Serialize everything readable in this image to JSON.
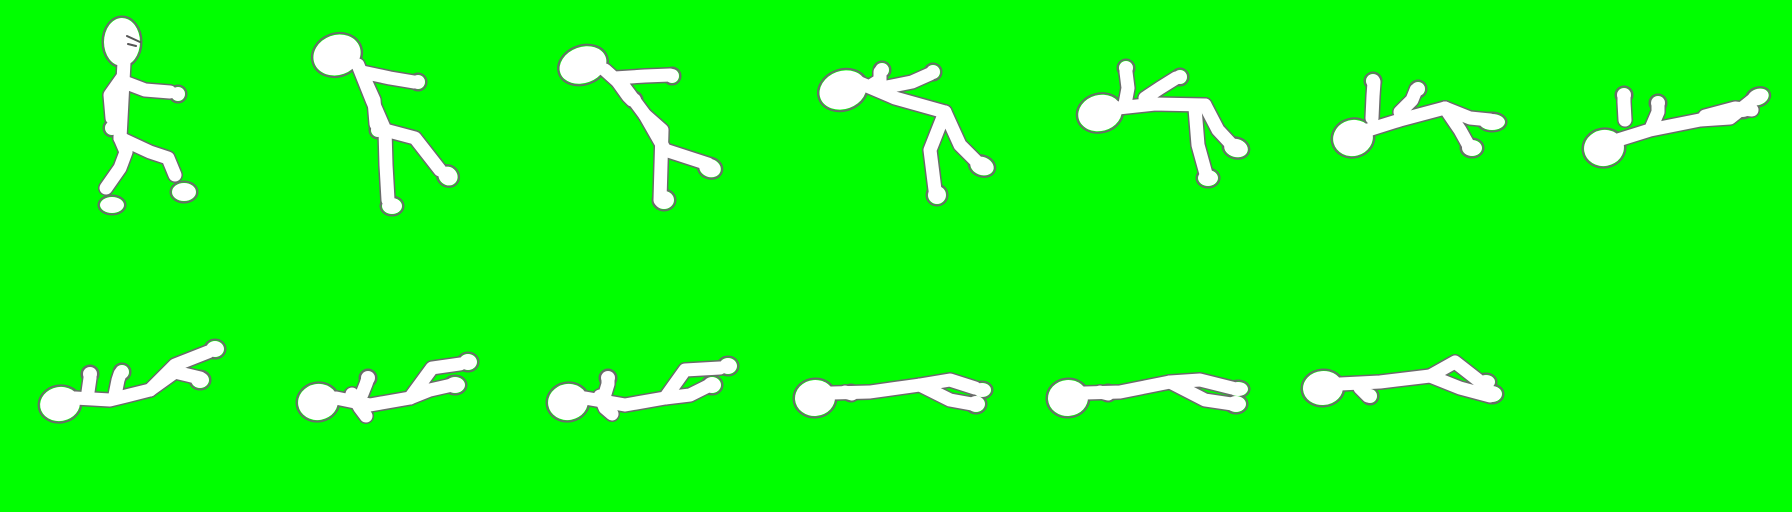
{
  "sheet": {
    "background_color": "#00ff00",
    "figure_color": "#ffffff",
    "outline_color": "#6b6b6b",
    "frame_count": 13,
    "columns": 7,
    "rows": 2
  },
  "frames": [
    {
      "pose": "standing"
    },
    {
      "pose": "knocked-back"
    },
    {
      "pose": "falling-backward"
    },
    {
      "pose": "tumbling"
    },
    {
      "pose": "tumbling"
    },
    {
      "pose": "landing"
    },
    {
      "pose": "landing"
    },
    {
      "pose": "lying-knees-up"
    },
    {
      "pose": "lying-knees-up"
    },
    {
      "pose": "lying-knees-up"
    },
    {
      "pose": "lying-flat"
    },
    {
      "pose": "lying-flat"
    },
    {
      "pose": "lying-flat"
    }
  ]
}
